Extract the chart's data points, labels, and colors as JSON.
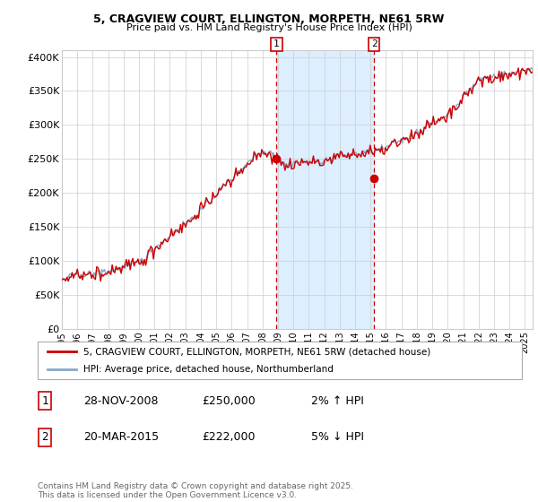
{
  "title": "5, CRAGVIEW COURT, ELLINGTON, MORPETH, NE61 5RW",
  "subtitle": "Price paid vs. HM Land Registry's House Price Index (HPI)",
  "xlim_start": 1995.0,
  "xlim_end": 2025.5,
  "ylim_bottom": 0,
  "ylim_top": 410000,
  "yticks": [
    0,
    50000,
    100000,
    150000,
    200000,
    250000,
    300000,
    350000,
    400000
  ],
  "ytick_labels": [
    "£0",
    "£50K",
    "£100K",
    "£150K",
    "£200K",
    "£250K",
    "£300K",
    "£350K",
    "£400K"
  ],
  "transaction1_x": 2008.91,
  "transaction1_y": 250000,
  "transaction1_label": "1",
  "transaction2_x": 2015.22,
  "transaction2_y": 222000,
  "transaction2_label": "2",
  "shading_x1": 2008.91,
  "shading_x2": 2015.22,
  "red_line_color": "#cc0000",
  "blue_line_color": "#88aacc",
  "shading_color": "#ddeeff",
  "dashed_line_color": "#cc0000",
  "legend_line1": "5, CRAGVIEW COURT, ELLINGTON, MORPETH, NE61 5RW (detached house)",
  "legend_line2": "HPI: Average price, detached house, Northumberland",
  "table_row1": [
    "1",
    "28-NOV-2008",
    "£250,000",
    "2% ↑ HPI"
  ],
  "table_row2": [
    "2",
    "20-MAR-2015",
    "£222,000",
    "5% ↓ HPI"
  ],
  "footer": "Contains HM Land Registry data © Crown copyright and database right 2025.\nThis data is licensed under the Open Government Licence v3.0.",
  "background_color": "#ffffff",
  "plot_bg_color": "#ffffff",
  "grid_color": "#cccccc",
  "title_fontsize": 9,
  "subtitle_fontsize": 8
}
